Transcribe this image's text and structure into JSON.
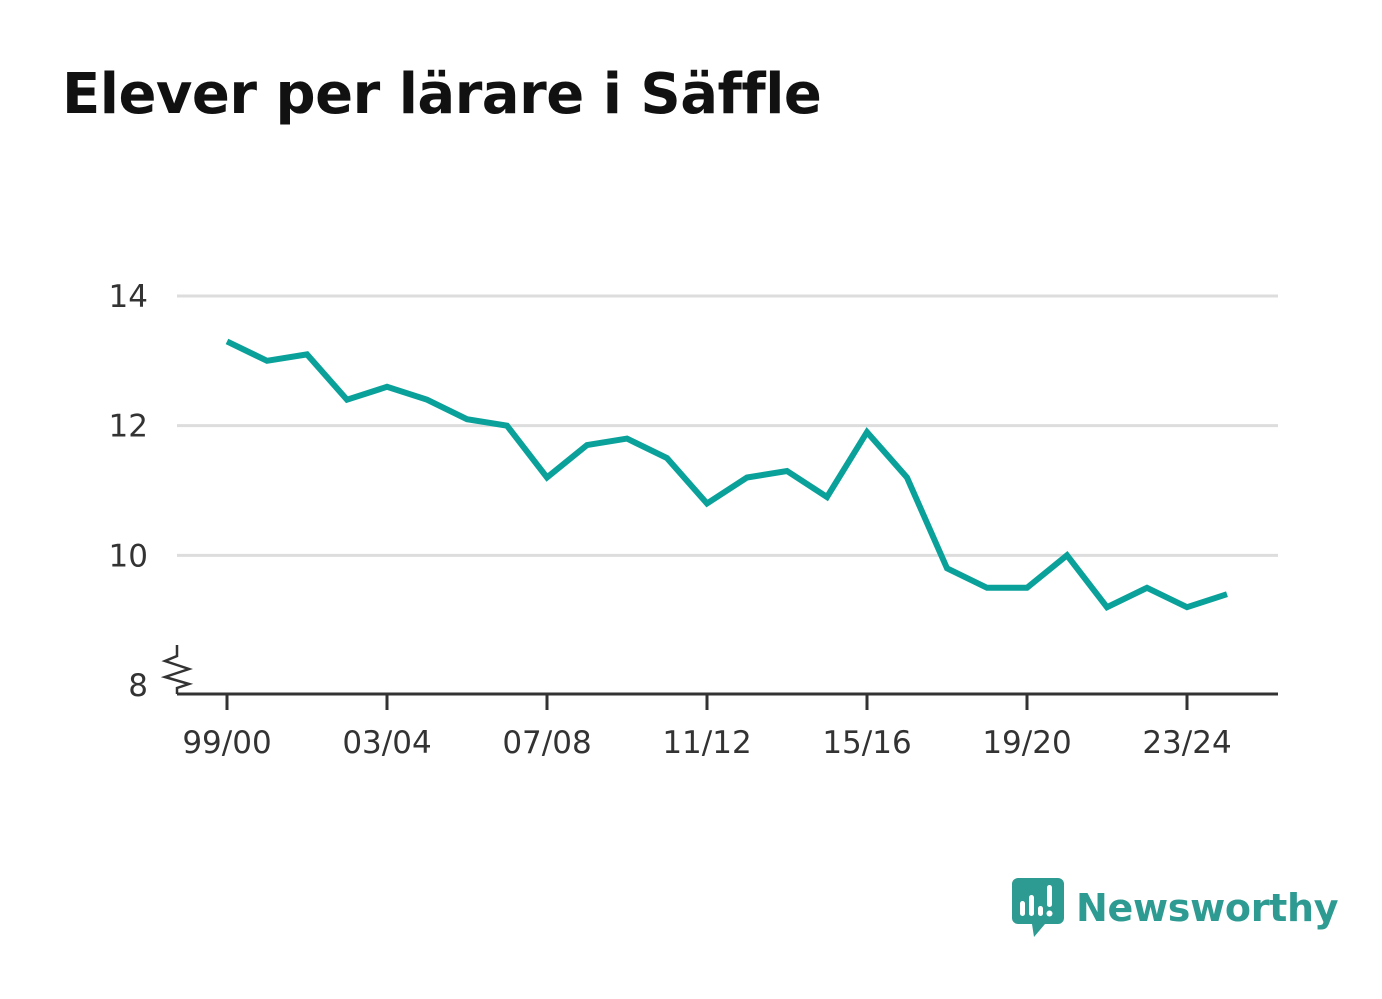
{
  "title": "Elever per lärare i Säffle",
  "brand": {
    "name": "Newsworthy",
    "color": "#2e9b92",
    "icon": "bar-chart-badge-icon"
  },
  "colors": {
    "line": "#0aa19a",
    "grid": "#dddddd",
    "axis": "#333333"
  },
  "chart_data": {
    "type": "line",
    "title": "Elever per lärare i Säffle",
    "xlabel": "",
    "ylabel": "",
    "x": [
      "99/00",
      "00/01",
      "01/02",
      "02/03",
      "03/04",
      "04/05",
      "05/06",
      "06/07",
      "07/08",
      "08/09",
      "09/10",
      "10/11",
      "11/12",
      "12/13",
      "13/14",
      "14/15",
      "15/16",
      "16/17",
      "17/18",
      "18/19",
      "19/20",
      "20/21",
      "21/22",
      "22/23",
      "23/24",
      "24/25"
    ],
    "series": [
      {
        "values": [
          13.3,
          13.0,
          13.1,
          12.4,
          12.6,
          12.4,
          12.1,
          12.0,
          11.2,
          11.7,
          11.8,
          11.5,
          10.8,
          11.2,
          11.3,
          10.9,
          11.9,
          11.2,
          9.8,
          9.5,
          9.5,
          10.0,
          9.2,
          9.5,
          9.2,
          9.4
        ]
      }
    ],
    "xticks": [
      "99/00",
      "03/04",
      "07/08",
      "11/12",
      "15/16",
      "19/20",
      "23/24"
    ],
    "yticks": [
      8,
      10,
      12,
      14
    ],
    "ylim": [
      8,
      14
    ],
    "y_axis_break": true,
    "grid": true,
    "legend": "none"
  }
}
